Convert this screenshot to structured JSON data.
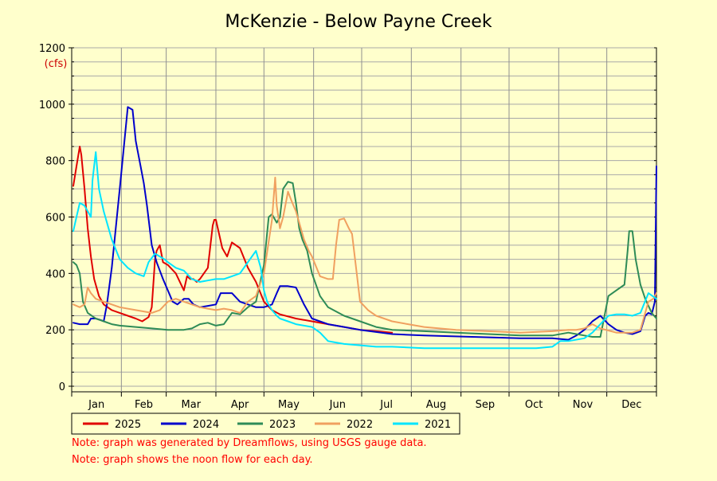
{
  "chart_data": {
    "type": "line",
    "title": "McKenzie - Below Payne Creek",
    "y_unit": "(cfs)",
    "ylim": [
      0,
      1200
    ],
    "y_ticks": [
      0,
      200,
      400,
      600,
      800,
      1000,
      1200
    ],
    "x_domain_days": [
      0,
      365
    ],
    "months": [
      "Jan",
      "Feb",
      "Mar",
      "Apr",
      "May",
      "Jun",
      "Jul",
      "Aug",
      "Sep",
      "Oct",
      "Nov",
      "Dec"
    ],
    "grid": true,
    "legend_placement": "bottom-left",
    "series": [
      {
        "name": "2025",
        "color": "#e00000",
        "x": [
          1,
          3,
          5,
          6,
          8,
          10,
          12,
          14,
          17,
          20,
          25,
          30,
          35,
          40,
          44,
          48,
          50,
          52,
          53,
          55,
          57,
          60,
          65,
          70,
          72,
          74,
          76,
          78,
          80,
          85,
          88,
          89,
          90,
          94,
          97,
          100,
          105,
          110,
          115,
          120,
          125,
          130,
          140,
          150,
          160,
          170,
          180,
          190,
          200
        ],
        "y": [
          710,
          780,
          850,
          820,
          700,
          560,
          460,
          380,
          320,
          290,
          270,
          260,
          250,
          240,
          230,
          245,
          280,
          450,
          480,
          500,
          440,
          430,
          400,
          340,
          390,
          380,
          380,
          370,
          380,
          420,
          570,
          590,
          590,
          490,
          460,
          510,
          490,
          420,
          370,
          300,
          270,
          255,
          240,
          230,
          220,
          210,
          200,
          195,
          190
        ]
      },
      {
        "name": "2024",
        "color": "#0000cc",
        "x": [
          1,
          5,
          10,
          12,
          15,
          18,
          20,
          22,
          25,
          30,
          35,
          38,
          40,
          41,
          43,
          45,
          47,
          50,
          53,
          55,
          57,
          60,
          63,
          66,
          70,
          73,
          76,
          80,
          85,
          90,
          93,
          100,
          105,
          110,
          115,
          120,
          125,
          128,
          130,
          135,
          140,
          145,
          150,
          160,
          170,
          180,
          200,
          220,
          250,
          280,
          300,
          310,
          315,
          320,
          325,
          330,
          335,
          340,
          345,
          350,
          355,
          358,
          360,
          362,
          364,
          365
        ],
        "y": [
          225,
          220,
          220,
          240,
          240,
          235,
          230,
          290,
          420,
          700,
          990,
          980,
          870,
          840,
          780,
          720,
          640,
          500,
          440,
          410,
          380,
          340,
          300,
          290,
          310,
          310,
          290,
          280,
          285,
          290,
          330,
          330,
          300,
          290,
          280,
          280,
          290,
          330,
          355,
          355,
          350,
          290,
          240,
          220,
          210,
          200,
          185,
          180,
          175,
          170,
          170,
          165,
          180,
          200,
          230,
          250,
          220,
          200,
          190,
          185,
          195,
          250,
          260,
          255,
          300,
          780
        ]
      },
      {
        "name": "2023",
        "color": "#2e8b57",
        "x": [
          1,
          3,
          5,
          7,
          10,
          15,
          20,
          25,
          30,
          40,
          50,
          60,
          70,
          75,
          80,
          85,
          90,
          95,
          100,
          105,
          110,
          115,
          120,
          123,
          125,
          128,
          130,
          132,
          135,
          138,
          140,
          142,
          144,
          147,
          150,
          155,
          160,
          170,
          180,
          190,
          200,
          220,
          240,
          260,
          280,
          300,
          310,
          320,
          325,
          330,
          335,
          340,
          345,
          347,
          348,
          350,
          352,
          355,
          358,
          362,
          365
        ],
        "y": [
          440,
          430,
          400,
          300,
          260,
          240,
          230,
          220,
          215,
          210,
          205,
          200,
          200,
          205,
          220,
          225,
          215,
          220,
          260,
          255,
          280,
          300,
          430,
          600,
          610,
          580,
          600,
          700,
          725,
          720,
          650,
          560,
          520,
          480,
          400,
          320,
          280,
          250,
          230,
          210,
          200,
          195,
          190,
          185,
          180,
          180,
          190,
          180,
          175,
          175,
          320,
          340,
          360,
          480,
          550,
          550,
          450,
          360,
          310,
          260,
          240
        ]
      },
      {
        "name": "2022",
        "color": "#f0a060",
        "x": [
          1,
          5,
          8,
          10,
          12,
          15,
          20,
          25,
          30,
          40,
          50,
          55,
          60,
          65,
          70,
          80,
          85,
          90,
          95,
          100,
          105,
          110,
          115,
          120,
          125,
          127,
          128,
          130,
          132,
          135,
          137,
          140,
          143,
          145,
          148,
          150,
          155,
          160,
          163,
          165,
          167,
          170,
          173,
          175,
          180,
          185,
          190,
          200,
          210,
          220,
          240,
          260,
          280,
          300,
          310,
          315,
          320,
          325,
          330,
          340,
          350,
          355,
          360,
          363,
          365
        ],
        "y": [
          290,
          280,
          290,
          350,
          330,
          310,
          300,
          290,
          280,
          270,
          260,
          270,
          300,
          310,
          300,
          280,
          275,
          270,
          275,
          270,
          260,
          300,
          320,
          400,
          590,
          740,
          640,
          560,
          600,
          690,
          660,
          620,
          560,
          520,
          480,
          460,
          390,
          380,
          380,
          500,
          590,
          595,
          560,
          540,
          300,
          270,
          250,
          230,
          220,
          210,
          200,
          195,
          190,
          195,
          200,
          200,
          205,
          220,
          205,
          190,
          190,
          200,
          300,
          310,
          330
        ]
      },
      {
        "name": "2021",
        "color": "#00e5ff",
        "x": [
          1,
          3,
          5,
          8,
          10,
          12,
          13,
          15,
          17,
          20,
          25,
          30,
          35,
          40,
          45,
          48,
          52,
          55,
          58,
          60,
          65,
          70,
          75,
          80,
          85,
          90,
          95,
          100,
          105,
          110,
          115,
          118,
          120,
          122,
          125,
          128,
          130,
          135,
          140,
          145,
          150,
          155,
          160,
          165,
          170,
          180,
          190,
          200,
          220,
          240,
          260,
          280,
          290,
          300,
          305,
          310,
          320,
          325,
          330,
          335,
          340,
          345,
          350,
          355,
          360,
          365
        ],
        "y": [
          550,
          600,
          650,
          640,
          620,
          600,
          730,
          830,
          700,
          620,
          520,
          450,
          420,
          400,
          390,
          440,
          470,
          460,
          450,
          440,
          420,
          410,
          380,
          370,
          375,
          380,
          380,
          390,
          400,
          440,
          480,
          420,
          340,
          300,
          270,
          250,
          240,
          230,
          220,
          215,
          210,
          190,
          160,
          155,
          150,
          145,
          140,
          140,
          135,
          135,
          135,
          135,
          135,
          140,
          160,
          160,
          170,
          190,
          220,
          250,
          255,
          255,
          250,
          260,
          330,
          310
        ]
      }
    ],
    "notes": [
      "Note: graph was generated by Dreamflows, using USGS gauge data.",
      "Note: graph shows the noon flow for each day."
    ]
  }
}
